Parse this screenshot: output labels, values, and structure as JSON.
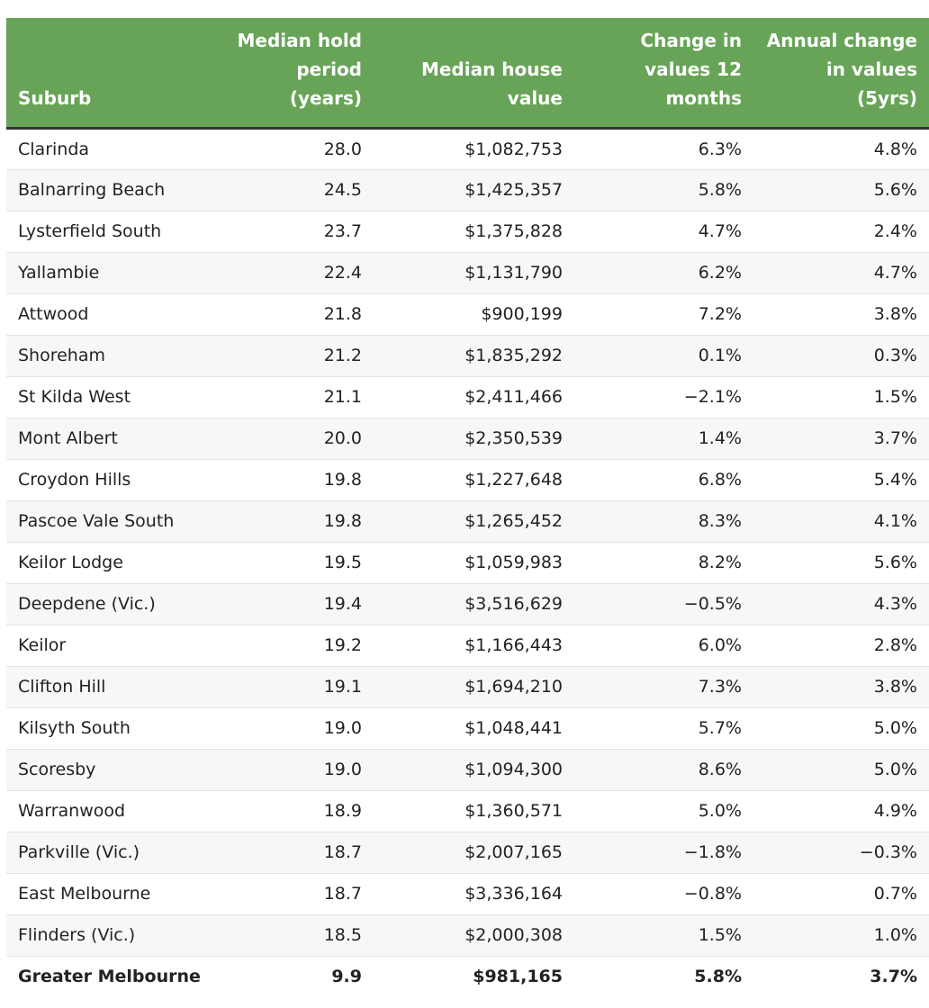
{
  "chart_data": {
    "type": "table",
    "columns": [
      "Suburb",
      "Median hold period (years)",
      "Median house value",
      "Change in values 12 months",
      "Annual change in values (5yrs)"
    ],
    "rows": [
      [
        "Clarinda",
        "28.0",
        "$1,082,753",
        "6.3%",
        "4.8%"
      ],
      [
        "Balnarring Beach",
        "24.5",
        "$1,425,357",
        "5.8%",
        "5.6%"
      ],
      [
        "Lysterfield South",
        "23.7",
        "$1,375,828",
        "4.7%",
        "2.4%"
      ],
      [
        "Yallambie",
        "22.4",
        "$1,131,790",
        "6.2%",
        "4.7%"
      ],
      [
        "Attwood",
        "21.8",
        "$900,199",
        "7.2%",
        "3.8%"
      ],
      [
        "Shoreham",
        "21.2",
        "$1,835,292",
        "0.1%",
        "0.3%"
      ],
      [
        "St Kilda West",
        "21.1",
        "$2,411,466",
        "−2.1%",
        "1.5%"
      ],
      [
        "Mont Albert",
        "20.0",
        "$2,350,539",
        "1.4%",
        "3.7%"
      ],
      [
        "Croydon Hills",
        "19.8",
        "$1,227,648",
        "6.8%",
        "5.4%"
      ],
      [
        "Pascoe Vale South",
        "19.8",
        "$1,265,452",
        "8.3%",
        "4.1%"
      ],
      [
        "Keilor Lodge",
        "19.5",
        "$1,059,983",
        "8.2%",
        "5.6%"
      ],
      [
        "Deepdene (Vic.)",
        "19.4",
        "$3,516,629",
        "−0.5%",
        "4.3%"
      ],
      [
        "Keilor",
        "19.2",
        "$1,166,443",
        "6.0%",
        "2.8%"
      ],
      [
        "Clifton Hill",
        "19.1",
        "$1,694,210",
        "7.3%",
        "3.8%"
      ],
      [
        "Kilsyth South",
        "19.0",
        "$1,048,441",
        "5.7%",
        "5.0%"
      ],
      [
        "Scoresby",
        "19.0",
        "$1,094,300",
        "8.6%",
        "5.0%"
      ],
      [
        "Warranwood",
        "18.9",
        "$1,360,571",
        "5.0%",
        "4.9%"
      ],
      [
        "Parkville (Vic.)",
        "18.7",
        "$2,007,165",
        "−1.8%",
        "−0.3%"
      ],
      [
        "East Melbourne",
        "18.7",
        "$3,336,164",
        "−0.8%",
        "0.7%"
      ],
      [
        "Flinders (Vic.)",
        "18.5",
        "$2,000,308",
        "1.5%",
        "1.0%"
      ]
    ],
    "total_row": [
      "Greater Melbourne",
      "9.9",
      "$981,165",
      "5.8%",
      "3.7%"
    ],
    "header_color": "#68a458",
    "header_text_color": "#ffffff",
    "row_stripe_color": "#f7f7f7"
  }
}
